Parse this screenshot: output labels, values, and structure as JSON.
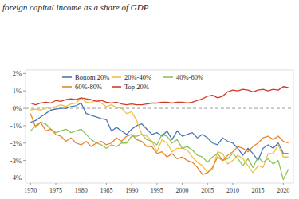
{
  "chart_data": {
    "type": "line",
    "title": "foreign capital income as a share of GDP",
    "x": [
      1970,
      1971,
      1972,
      1973,
      1974,
      1975,
      1976,
      1977,
      1978,
      1979,
      1980,
      1981,
      1982,
      1983,
      1984,
      1985,
      1986,
      1987,
      1988,
      1989,
      1990,
      1991,
      1992,
      1993,
      1994,
      1995,
      1996,
      1997,
      1998,
      1999,
      2000,
      2001,
      2002,
      2003,
      2004,
      2005,
      2006,
      2007,
      2008,
      2009,
      2010,
      2011,
      2012,
      2013,
      2014,
      2015,
      2016,
      2017,
      2018,
      2019,
      2020,
      2021
    ],
    "series": [
      {
        "name": "Bottom 20%",
        "color": "#4c78b5",
        "values": [
          -0.8,
          -0.7,
          -0.5,
          -0.3,
          -0.1,
          -0.05,
          0.0,
          0.0,
          0.1,
          0.15,
          0.3,
          -0.3,
          -0.4,
          -0.5,
          -0.6,
          -0.65,
          -1.3,
          -1.1,
          -1.3,
          -1.5,
          -1.2,
          -1.0,
          -0.9,
          -1.2,
          -1.5,
          -1.4,
          -1.6,
          -1.3,
          -1.8,
          -1.3,
          -1.6,
          -1.5,
          -1.4,
          -1.7,
          -1.5,
          -1.7,
          -2.0,
          -2.1,
          -1.7,
          -1.9,
          -2.0,
          -2.3,
          -2.7,
          -2.3,
          -2.6,
          -3.0,
          -2.3,
          -2.1,
          -2.3,
          -2.0,
          -2.6,
          -2.6
        ]
      },
      {
        "name": "20%-40%",
        "color": "#f2c146",
        "values": [
          -0.1,
          -0.05,
          -0.1,
          0.0,
          0.05,
          0.1,
          0.2,
          0.1,
          0.25,
          0.3,
          0.6,
          0.35,
          0.3,
          0.5,
          0.3,
          0.1,
          0.2,
          0.05,
          0.0,
          -0.3,
          -0.2,
          -0.7,
          -1.5,
          -1.6,
          -1.9,
          -2.5,
          -1.8,
          -2.0,
          -2.5,
          -2.3,
          -2.3,
          -2.4,
          -2.8,
          -3.1,
          -3.3,
          -3.7,
          -3.5,
          -2.5,
          -2.6,
          -3.2,
          -3.0,
          -2.7,
          -2.9,
          -3.3,
          -3.7,
          -3.3,
          -3.4,
          -2.6,
          -2.6,
          -2.1,
          -2.8,
          -2.8
        ]
      },
      {
        "name": "40%-60%",
        "color": "#8dc455",
        "values": [
          -1.3,
          -1.0,
          -0.8,
          -0.9,
          -1.2,
          -1.4,
          -1.3,
          -1.2,
          -1.4,
          -1.3,
          -1.2,
          -1.5,
          -1.8,
          -2.0,
          -2.1,
          -2.3,
          -2.1,
          -2.2,
          -2.0,
          -2.0,
          -1.6,
          -1.6,
          -1.5,
          -1.8,
          -1.9,
          -2.1,
          -1.5,
          -1.6,
          -2.0,
          -1.8,
          -2.3,
          -2.2,
          -2.4,
          -2.7,
          -2.8,
          -3.1,
          -2.8,
          -2.6,
          -3.0,
          -2.9,
          -2.6,
          -2.9,
          -3.3,
          -2.9,
          -3.4,
          -2.8,
          -3.1,
          -2.9,
          -3.2,
          -3.0,
          -4.1,
          -3.5
        ]
      },
      {
        "name": "60%-80%",
        "color": "#e8862e",
        "values": [
          -0.3,
          -1.1,
          -0.8,
          -1.3,
          -1.2,
          -1.5,
          -1.6,
          -1.9,
          -1.7,
          -2.0,
          -2.1,
          -1.9,
          -2.2,
          -2.0,
          -1.9,
          -2.1,
          -2.0,
          -1.7,
          -1.9,
          -1.6,
          -1.5,
          -1.8,
          -1.9,
          -2.2,
          -2.2,
          -2.6,
          -2.5,
          -2.8,
          -2.6,
          -2.9,
          -2.8,
          -3.0,
          -3.1,
          -3.4,
          -3.8,
          -3.7,
          -3.4,
          -2.8,
          -3.0,
          -2.7,
          -2.5,
          -2.2,
          -2.3,
          -2.5,
          -2.2,
          -2.0,
          -1.7,
          -1.6,
          -1.8,
          -1.6,
          -1.9,
          -2.0
        ]
      },
      {
        "name": "Top 20%",
        "color": "#d23b2c",
        "values": [
          0.3,
          0.2,
          0.3,
          0.35,
          0.3,
          0.45,
          0.4,
          0.5,
          0.55,
          0.5,
          0.6,
          0.55,
          0.5,
          0.4,
          0.45,
          0.35,
          0.3,
          0.35,
          0.25,
          0.2,
          0.25,
          0.2,
          0.2,
          0.25,
          0.3,
          0.3,
          0.35,
          0.35,
          0.3,
          0.35,
          0.35,
          0.3,
          0.35,
          0.45,
          0.55,
          0.7,
          0.75,
          0.6,
          0.7,
          0.95,
          1.05,
          1.0,
          1.1,
          1.05,
          0.95,
          1.05,
          1.1,
          1.0,
          1.1,
          1.05,
          1.25,
          1.2
        ]
      }
    ],
    "xlim": [
      1969,
      2022
    ],
    "xticks": [
      1970,
      1975,
      1980,
      1985,
      1990,
      1995,
      2000,
      2005,
      2010,
      2015,
      2020
    ],
    "ylim": [
      -4.3,
      2.2
    ],
    "yticks": [
      {
        "value": 2,
        "label": "2%"
      },
      {
        "value": 1,
        "label": "1%"
      },
      {
        "value": 0,
        "label": "0%"
      },
      {
        "value": -1,
        "label": "-1%"
      },
      {
        "value": -2,
        "label": "-2%"
      },
      {
        "value": -3,
        "label": "-3%"
      },
      {
        "value": -4,
        "label": "-4%"
      }
    ],
    "grid": false,
    "legend": "top"
  }
}
